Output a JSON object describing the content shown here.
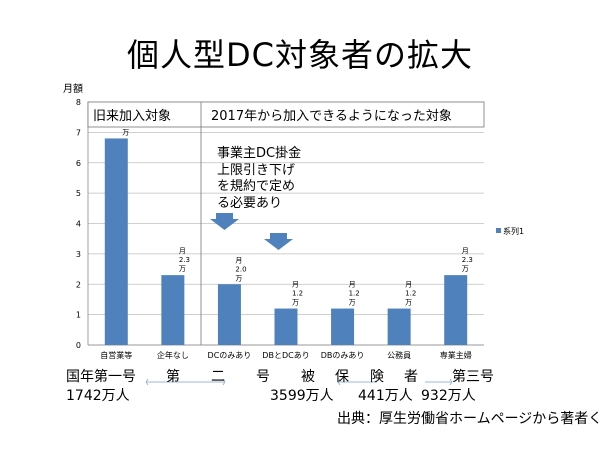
{
  "title": "個人型DC対象者の拡大",
  "chart_data": {
    "type": "bar",
    "ylabel": "月額",
    "ylim": [
      0,
      8
    ],
    "yticks": [
      0,
      1,
      2,
      3,
      4,
      5,
      6,
      7,
      8
    ],
    "categories": [
      "自営業等",
      "企年なし",
      "DCのみあり",
      "DBとDCあり",
      "DBのみあり",
      "公務員",
      "専業主婦"
    ],
    "series": [
      {
        "name": "系列1",
        "values": [
          6.8,
          2.3,
          2.0,
          1.2,
          1.2,
          1.2,
          2.3
        ]
      }
    ],
    "data_labels": [
      [
        "月",
        "6.8",
        "万"
      ],
      [
        "月",
        "2.3",
        "万"
      ],
      [
        "月",
        "2.0",
        "万"
      ],
      [
        "月",
        "1.2",
        "万"
      ],
      [
        "月",
        "1.2",
        "万"
      ],
      [
        "月",
        "1.2",
        "万"
      ],
      [
        "月",
        "2.3",
        "万"
      ]
    ],
    "legend": "right",
    "grid": true,
    "bar_color": "#4F81BD",
    "group_labels": [
      "旧来加入対象",
      "2017年から加入できるようになった対象"
    ],
    "annotation_lines": [
      "事業主DC掛金",
      "上限引き下げ",
      "を規約で定め",
      "る必要あり"
    ]
  },
  "bottom": {
    "cat1_name": "国年第一号",
    "cat1_count": "1742万人",
    "cat2_name": [
      "第",
      "二",
      "号",
      "被",
      "保",
      "険",
      "者"
    ],
    "cat2_count_a": "3599万人",
    "cat2_count_b": "441万人",
    "cat3_name": "第三号",
    "cat3_count": "932万人"
  },
  "source": "出典：厚生労働省ホームページから著者く作成"
}
